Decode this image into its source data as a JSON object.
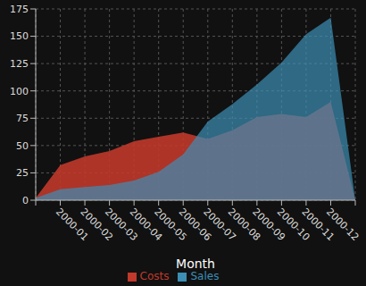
{
  "chart_data": {
    "type": "area",
    "x_label": "Month",
    "categories": [
      null,
      "2000-01",
      "2000-02",
      "2000-03",
      "2000-04",
      "2000-05",
      "2000-06",
      "2000-07",
      "2000-08",
      "2000-09",
      "2000-10",
      "2000-11",
      "2000-12",
      null
    ],
    "series": [
      {
        "name": "Costs",
        "color": "#c0392b",
        "values": [
          2,
          32,
          40,
          45,
          54,
          58,
          62,
          56,
          64,
          76,
          79,
          76,
          90,
          0
        ]
      },
      {
        "name": "Sales",
        "color": "#3c8fb5",
        "values": [
          2,
          10,
          12,
          14,
          18,
          26,
          42,
          72,
          88,
          106,
          126,
          152,
          167,
          0
        ]
      }
    ],
    "ylim": [
      0,
      175
    ],
    "yticks": [
      0,
      25,
      50,
      75,
      100,
      125,
      150,
      175
    ],
    "grid": true,
    "legend": "bottom"
  }
}
